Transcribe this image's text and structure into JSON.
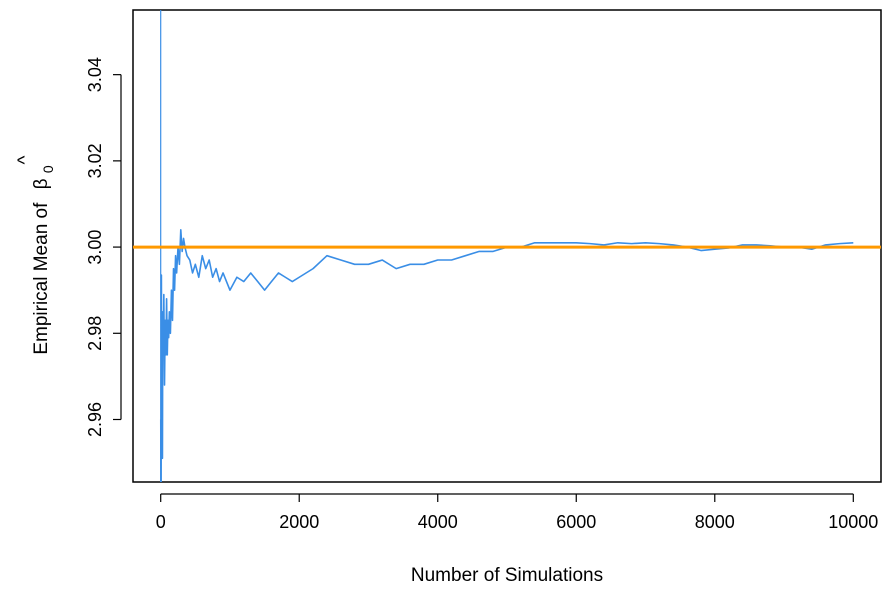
{
  "chart_data": {
    "type": "line",
    "title": "",
    "xlabel": "Number of Simulations",
    "ylabel_text": "Empirical Mean of",
    "ylabel_symbol": "β",
    "ylabel_hat": "^",
    "ylabel_subscript": "0",
    "xlim": [
      -400,
      10400
    ],
    "ylim": [
      2.9455,
      3.055
    ],
    "x_ticks": [
      0,
      2000,
      4000,
      6000,
      8000,
      10000
    ],
    "x_tick_labels": [
      "0",
      "2000",
      "4000",
      "6000",
      "8000",
      "10000"
    ],
    "y_ticks": [
      2.96,
      2.98,
      3.0,
      3.02,
      3.04
    ],
    "y_tick_labels": [
      "2.96",
      "2.98",
      "3.00",
      "3.02",
      "3.04"
    ],
    "grid": false,
    "legend": "none",
    "reference_line": {
      "y": 3.0,
      "color": "#FF9900"
    },
    "series": [
      {
        "color": "#3A8EE6",
        "x": [
          1,
          5,
          10,
          15,
          20,
          25,
          30,
          38,
          45,
          55,
          65,
          75,
          85,
          95,
          105,
          115,
          125,
          140,
          155,
          170,
          185,
          200,
          215,
          230,
          250,
          270,
          290,
          310,
          330,
          350,
          380,
          420,
          460,
          500,
          550,
          600,
          650,
          700,
          750,
          800,
          850,
          900,
          950,
          1000,
          1100,
          1200,
          1300,
          1400,
          1500,
          1600,
          1700,
          1800,
          1900,
          2000,
          2200,
          2400,
          2600,
          2800,
          3000,
          3200,
          3400,
          3600,
          3800,
          4000,
          4200,
          4400,
          4600,
          4800,
          5000,
          5200,
          5400,
          5600,
          5800,
          6000,
          6200,
          6400,
          6600,
          6800,
          7000,
          7200,
          7400,
          7600,
          7800,
          8000,
          8200,
          8400,
          8600,
          8800,
          9000,
          9200,
          9400,
          9600,
          9800,
          10000
        ],
        "y": [
          2.96,
          2.93,
          2.9935,
          2.955,
          2.975,
          2.951,
          2.985,
          2.975,
          2.989,
          2.968,
          2.983,
          2.975,
          2.988,
          2.975,
          2.983,
          2.979,
          2.985,
          2.98,
          2.99,
          2.983,
          2.995,
          2.99,
          2.998,
          2.994,
          3.0,
          2.996,
          3.004,
          2.999,
          3.002,
          3.0,
          2.998,
          2.997,
          2.994,
          2.996,
          2.993,
          2.998,
          2.995,
          2.997,
          2.993,
          2.995,
          2.992,
          2.994,
          2.992,
          2.99,
          2.993,
          2.992,
          2.994,
          2.992,
          2.99,
          2.992,
          2.994,
          2.993,
          2.992,
          2.993,
          2.995,
          2.998,
          2.997,
          2.996,
          2.996,
          2.997,
          2.995,
          2.996,
          2.996,
          2.997,
          2.997,
          2.998,
          2.999,
          2.999,
          3.0,
          3.0,
          3.001,
          3.001,
          3.001,
          3.001,
          3.0008,
          3.0005,
          3.001,
          3.0008,
          3.001,
          3.0008,
          3.0005,
          3.0,
          2.9992,
          2.9995,
          2.9998,
          3.0005,
          3.0005,
          3.0003,
          3.0,
          3.0,
          2.9995,
          3.0005,
          3.0008,
          3.001
        ]
      }
    ]
  }
}
